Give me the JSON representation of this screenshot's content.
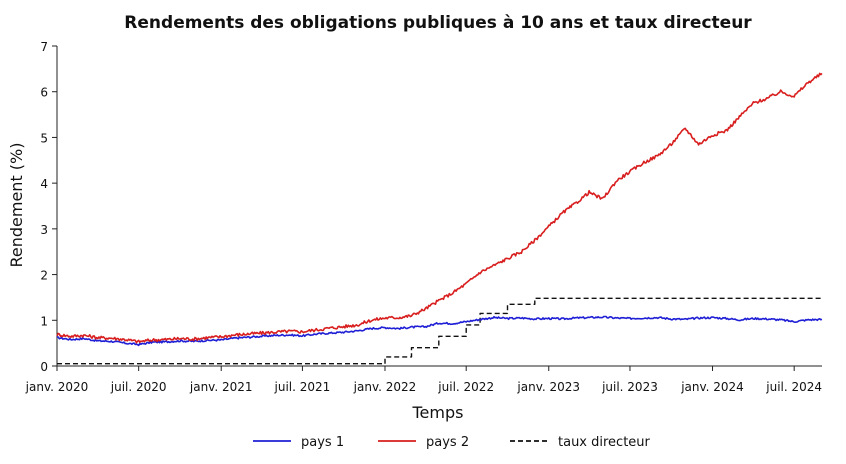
{
  "chart_data": {
    "type": "line",
    "title": "Rendements des obligations publiques à 10 ans et taux directeur",
    "xlabel": "Temps",
    "ylabel": "Rendement (%)",
    "xlim": [
      "2020-01-01",
      "2024-09-01"
    ],
    "ylim": [
      0,
      7
    ],
    "y_ticks": [
      0,
      1,
      2,
      3,
      4,
      5,
      6,
      7
    ],
    "x_ticks": [
      {
        "date": "2020-01-01",
        "label": "janv. 2020"
      },
      {
        "date": "2020-07-01",
        "label": "juil. 2020"
      },
      {
        "date": "2021-01-01",
        "label": "janv. 2021"
      },
      {
        "date": "2021-07-01",
        "label": "juil. 2021"
      },
      {
        "date": "2022-01-01",
        "label": "janv. 2022"
      },
      {
        "date": "2022-07-01",
        "label": "juil. 2022"
      },
      {
        "date": "2023-01-01",
        "label": "janv. 2023"
      },
      {
        "date": "2023-07-01",
        "label": "juil. 2023"
      },
      {
        "date": "2024-01-01",
        "label": "janv. 2024"
      },
      {
        "date": "2024-07-01",
        "label": "juil. 2024"
      }
    ],
    "grid": false,
    "legend_position": "bottom",
    "series": [
      {
        "name": "pays 1",
        "color": "#1f1fd6",
        "dash": "solid",
        "points": [
          [
            "2020-01-01",
            0.62
          ],
          [
            "2020-02-01",
            0.58
          ],
          [
            "2020-03-01",
            0.6
          ],
          [
            "2020-04-01",
            0.55
          ],
          [
            "2020-05-01",
            0.54
          ],
          [
            "2020-06-01",
            0.5
          ],
          [
            "2020-07-01",
            0.47
          ],
          [
            "2020-08-01",
            0.52
          ],
          [
            "2020-09-01",
            0.53
          ],
          [
            "2020-10-01",
            0.55
          ],
          [
            "2020-11-01",
            0.54
          ],
          [
            "2020-12-01",
            0.56
          ],
          [
            "2021-01-01",
            0.57
          ],
          [
            "2021-02-01",
            0.61
          ],
          [
            "2021-03-01",
            0.63
          ],
          [
            "2021-04-01",
            0.65
          ],
          [
            "2021-05-01",
            0.67
          ],
          [
            "2021-06-01",
            0.68
          ],
          [
            "2021-07-01",
            0.66
          ],
          [
            "2021-08-01",
            0.7
          ],
          [
            "2021-09-01",
            0.72
          ],
          [
            "2021-10-01",
            0.74
          ],
          [
            "2021-11-01",
            0.77
          ],
          [
            "2021-12-01",
            0.82
          ],
          [
            "2022-01-01",
            0.84
          ],
          [
            "2022-02-01",
            0.82
          ],
          [
            "2022-03-01",
            0.85
          ],
          [
            "2022-04-01",
            0.86
          ],
          [
            "2022-05-01",
            0.94
          ],
          [
            "2022-06-01",
            0.93
          ],
          [
            "2022-07-01",
            0.97
          ],
          [
            "2022-08-01",
            1.02
          ],
          [
            "2022-09-01",
            1.06
          ],
          [
            "2022-10-01",
            1.04
          ],
          [
            "2022-11-01",
            1.05
          ],
          [
            "2022-12-01",
            1.03
          ],
          [
            "2023-01-01",
            1.04
          ],
          [
            "2023-02-01",
            1.03
          ],
          [
            "2023-03-01",
            1.05
          ],
          [
            "2023-04-01",
            1.06
          ],
          [
            "2023-05-01",
            1.07
          ],
          [
            "2023-06-01",
            1.05
          ],
          [
            "2023-07-01",
            1.04
          ],
          [
            "2023-08-01",
            1.05
          ],
          [
            "2023-09-01",
            1.06
          ],
          [
            "2023-10-01",
            1.03
          ],
          [
            "2023-11-01",
            1.02
          ],
          [
            "2023-12-01",
            1.05
          ],
          [
            "2024-01-01",
            1.06
          ],
          [
            "2024-02-01",
            1.04
          ],
          [
            "2024-03-01",
            1.01
          ],
          [
            "2024-04-01",
            1.04
          ],
          [
            "2024-05-01",
            1.03
          ],
          [
            "2024-06-01",
            1.01
          ],
          [
            "2024-07-01",
            0.97
          ],
          [
            "2024-08-01",
            1.01
          ],
          [
            "2024-09-01",
            1.02
          ]
        ]
      },
      {
        "name": "pays 2",
        "color": "#d81e1e",
        "dash": "solid",
        "points": [
          [
            "2020-01-01",
            0.69
          ],
          [
            "2020-02-01",
            0.65
          ],
          [
            "2020-03-01",
            0.67
          ],
          [
            "2020-04-01",
            0.62
          ],
          [
            "2020-05-01",
            0.61
          ],
          [
            "2020-06-01",
            0.58
          ],
          [
            "2020-07-01",
            0.53
          ],
          [
            "2020-08-01",
            0.57
          ],
          [
            "2020-09-01",
            0.58
          ],
          [
            "2020-10-01",
            0.6
          ],
          [
            "2020-11-01",
            0.59
          ],
          [
            "2020-12-01",
            0.62
          ],
          [
            "2021-01-01",
            0.64
          ],
          [
            "2021-02-01",
            0.68
          ],
          [
            "2021-03-01",
            0.7
          ],
          [
            "2021-04-01",
            0.72
          ],
          [
            "2021-05-01",
            0.74
          ],
          [
            "2021-06-01",
            0.76
          ],
          [
            "2021-07-01",
            0.75
          ],
          [
            "2021-08-01",
            0.79
          ],
          [
            "2021-09-01",
            0.83
          ],
          [
            "2021-10-01",
            0.86
          ],
          [
            "2021-11-01",
            0.9
          ],
          [
            "2021-12-01",
            1.0
          ],
          [
            "2022-01-01",
            1.05
          ],
          [
            "2022-02-01",
            1.06
          ],
          [
            "2022-03-01",
            1.1
          ],
          [
            "2022-04-01",
            1.25
          ],
          [
            "2022-05-01",
            1.43
          ],
          [
            "2022-06-01",
            1.6
          ],
          [
            "2022-07-01",
            1.8
          ],
          [
            "2022-08-01",
            2.05
          ],
          [
            "2022-09-01",
            2.2
          ],
          [
            "2022-10-01",
            2.35
          ],
          [
            "2022-11-01",
            2.5
          ],
          [
            "2022-12-01",
            2.75
          ],
          [
            "2023-01-01",
            3.05
          ],
          [
            "2023-02-01",
            3.35
          ],
          [
            "2023-03-01",
            3.55
          ],
          [
            "2023-04-01",
            3.8
          ],
          [
            "2023-05-01",
            3.65
          ],
          [
            "2023-06-01",
            4.05
          ],
          [
            "2023-07-01",
            4.25
          ],
          [
            "2023-08-01",
            4.45
          ],
          [
            "2023-09-01",
            4.6
          ],
          [
            "2023-10-01",
            4.85
          ],
          [
            "2023-11-01",
            5.2
          ],
          [
            "2023-12-01",
            4.85
          ],
          [
            "2024-01-01",
            5.05
          ],
          [
            "2024-02-01",
            5.15
          ],
          [
            "2024-03-01",
            5.45
          ],
          [
            "2024-04-01",
            5.75
          ],
          [
            "2024-05-01",
            5.85
          ],
          [
            "2024-06-01",
            6.0
          ],
          [
            "2024-07-01",
            5.9
          ],
          [
            "2024-08-01",
            6.2
          ],
          [
            "2024-09-01",
            6.4
          ]
        ]
      },
      {
        "name": "taux directeur",
        "color": "#111111",
        "dash": "dashed",
        "step": true,
        "points": [
          [
            "2020-01-01",
            0.05
          ],
          [
            "2022-01-01",
            0.05
          ],
          [
            "2022-01-01",
            0.2
          ],
          [
            "2022-02-01",
            0.2
          ],
          [
            "2022-03-01",
            0.2
          ],
          [
            "2022-03-01",
            0.4
          ],
          [
            "2022-04-01",
            0.4
          ],
          [
            "2022-05-01",
            0.4
          ],
          [
            "2022-05-01",
            0.65
          ],
          [
            "2022-06-01",
            0.65
          ],
          [
            "2022-07-01",
            0.65
          ],
          [
            "2022-07-01",
            0.9
          ],
          [
            "2022-08-01",
            0.9
          ],
          [
            "2022-08-01",
            1.15
          ],
          [
            "2022-09-01",
            1.15
          ],
          [
            "2022-10-01",
            1.15
          ],
          [
            "2022-10-01",
            1.35
          ],
          [
            "2022-11-01",
            1.35
          ],
          [
            "2022-12-01",
            1.35
          ],
          [
            "2022-12-01",
            1.48
          ],
          [
            "2024-09-01",
            1.48
          ]
        ]
      }
    ]
  }
}
